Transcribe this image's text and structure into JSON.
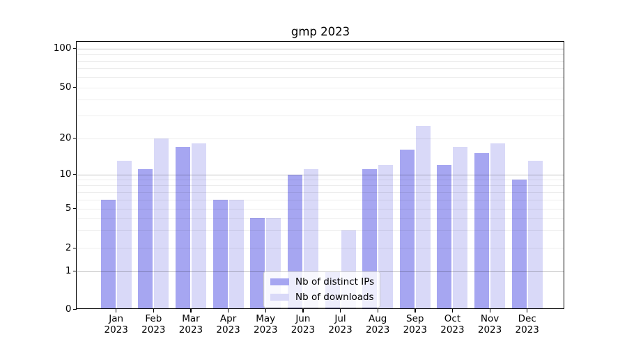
{
  "title": "gmp 2023",
  "chart_data": {
    "type": "bar",
    "title": "gmp 2023",
    "categories": [
      "Jan",
      "Feb",
      "Mar",
      "Apr",
      "May",
      "Jun",
      "Jul",
      "Aug",
      "Sep",
      "Oct",
      "Nov",
      "Dec"
    ],
    "x_tick_second_line": "2023",
    "series": [
      {
        "name": "Nb of distinct IPs",
        "color": "#a6a6f1",
        "values": [
          6,
          11,
          17,
          6,
          4,
          10,
          1,
          11,
          16,
          12,
          15,
          9
        ]
      },
      {
        "name": "Nb of downloads",
        "color": "#d9d9f8",
        "values": [
          13,
          20,
          18,
          6,
          4,
          11,
          3,
          12,
          25,
          17,
          18,
          13
        ]
      }
    ],
    "yscale": "symlog",
    "ylim": [
      0,
      112
    ],
    "y_major_ticks": [
      0,
      1,
      2,
      5,
      10,
      20,
      50,
      100
    ],
    "y_major_gridlines": [
      1,
      10,
      100
    ],
    "y_minor_gridlines": [
      2,
      3,
      4,
      5,
      6,
      7,
      8,
      9,
      20,
      30,
      40,
      50,
      60,
      70,
      80,
      90
    ],
    "grid": true,
    "legend_position": "lower center"
  },
  "colors": {
    "background": "#ffffff",
    "bar_distinct_ips": "#a6a6f1",
    "bar_downloads": "#d9d9f8",
    "axis": "#000000",
    "text": "#000000",
    "grid_major": "rgba(0,0,0,0.24)",
    "grid_minor": "rgba(0,0,0,0.07)",
    "legend_bg": "rgba(255,255,255,0.8)",
    "legend_border": "#cbcbcb"
  }
}
